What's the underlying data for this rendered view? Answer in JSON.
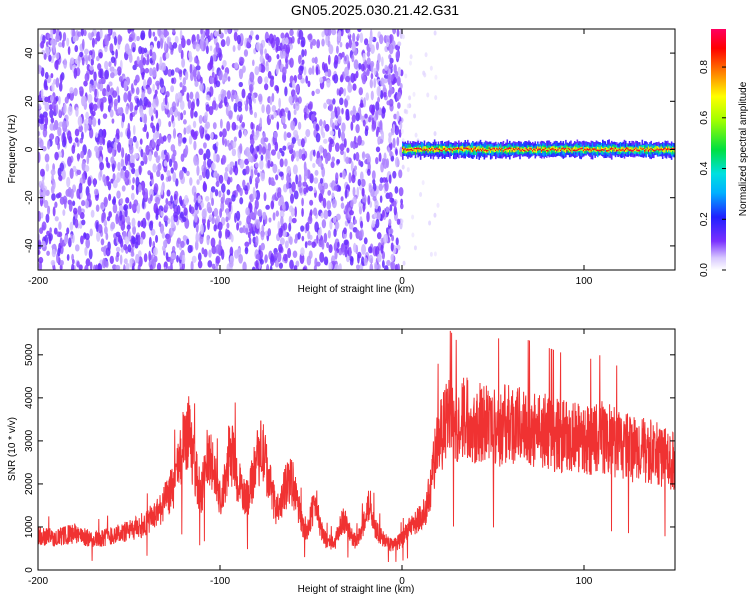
{
  "title": "GN05.2025.030.21.42.G31",
  "chart_data": [
    {
      "type": "heatmap",
      "xlabel": "Height of straight line (km)",
      "ylabel": "Frequency (Hz)",
      "xlim": [
        -200,
        150
      ],
      "ylim": [
        -50,
        50
      ],
      "x_ticks": [
        -200,
        -100,
        0,
        100
      ],
      "y_ticks": [
        -40,
        -20,
        0,
        20,
        40
      ],
      "colorbar": {
        "label": "Normalized spectral amplitude",
        "range": [
          0,
          0.95
        ],
        "ticks": [
          0,
          0.2,
          0.4,
          0.6,
          0.8
        ]
      },
      "regions": [
        {
          "x_range": [
            -200,
            0
          ],
          "y_range": [
            -50,
            50
          ],
          "amplitude_range": [
            0.05,
            0.15
          ]
        },
        {
          "x_range": [
            0,
            20
          ],
          "y_range": [
            -50,
            50
          ],
          "amplitude_range": [
            0.02,
            0.05
          ]
        },
        {
          "x_range": [
            0,
            150
          ],
          "y_center": 0,
          "y_halfwidth": 3,
          "amplitude_range": [
            0.3,
            0.95
          ]
        }
      ]
    },
    {
      "type": "line",
      "xlabel": "Height of straight line (km)",
      "ylabel": "SNR (10 * v/v)",
      "xlim": [
        -200,
        150
      ],
      "ylim": [
        0,
        5600
      ],
      "x_ticks": [
        -200,
        -100,
        0,
        100
      ],
      "y_ticks": [
        0,
        1000,
        2000,
        3000,
        4000,
        5000
      ],
      "color": "#f03232",
      "series": [
        {
          "x": [
            -200,
            -190,
            -180,
            -170,
            -160,
            -150,
            -140,
            -135,
            -130,
            -125,
            -122,
            -120,
            -117,
            -115,
            -112,
            -110,
            -107,
            -105,
            -102,
            -100,
            -97,
            -95,
            -92,
            -90,
            -87,
            -85,
            -82,
            -80,
            -77,
            -75,
            -72,
            -70,
            -67,
            -65,
            -62,
            -60,
            -57,
            -55,
            -52,
            -50,
            -47,
            -45,
            -42,
            -40,
            -37,
            -35,
            -32,
            -30,
            -27,
            -25,
            -22,
            -20,
            -17,
            -15,
            -12,
            -10,
            -7,
            -5,
            -2,
            0,
            3,
            5,
            7,
            10,
            13,
            15,
            18,
            20,
            25,
            30,
            35,
            40,
            45,
            50,
            60,
            70,
            80,
            90,
            100,
            110,
            120,
            130,
            140,
            150
          ],
          "y": [
            800,
            750,
            850,
            700,
            800,
            900,
            1100,
            1300,
            1600,
            2000,
            2500,
            3000,
            3200,
            2600,
            2000,
            1800,
            2700,
            2500,
            2000,
            1600,
            2000,
            2800,
            2500,
            2000,
            1800,
            1600,
            2200,
            2600,
            2800,
            2500,
            1900,
            1500,
            1400,
            1800,
            2100,
            2000,
            1500,
            1100,
            900,
            1300,
            1500,
            1000,
            700,
            650,
            600,
            900,
            1200,
            1000,
            700,
            650,
            900,
            1400,
            1500,
            1000,
            800,
            700,
            600,
            600,
            650,
            700,
            900,
            1000,
            1100,
            1200,
            1400,
            1800,
            2600,
            3000,
            3500,
            3300,
            3600,
            3400,
            3500,
            3300,
            3400,
            3300,
            3200,
            3100,
            3000,
            3100,
            2900,
            2800,
            2700,
            2500
          ]
        }
      ]
    }
  ]
}
